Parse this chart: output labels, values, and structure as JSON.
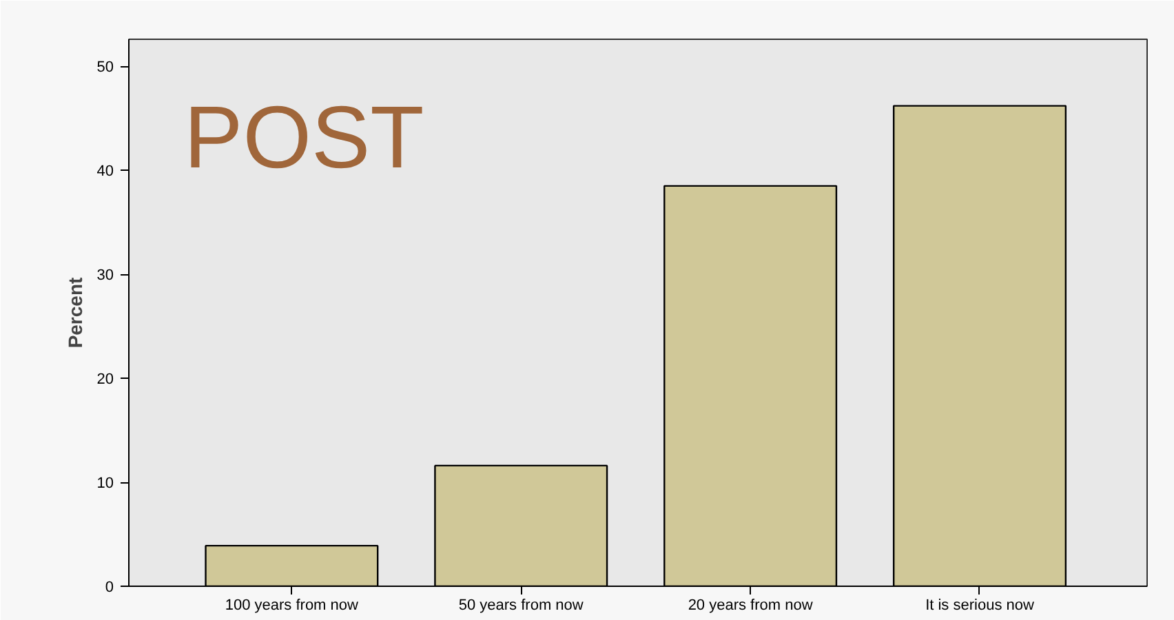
{
  "chart_data": {
    "type": "bar",
    "categories": [
      "100 years from now",
      "50 years from now",
      "20 years from now",
      "It is serious now"
    ],
    "values": [
      3.9,
      11.6,
      38.5,
      46.2
    ],
    "color": "#d0c898",
    "ylabel": "Percent",
    "ylim": [
      0,
      52.6
    ],
    "yticks": [
      0,
      10,
      20,
      30,
      40,
      50
    ],
    "grid": false,
    "annotations": [
      "POST"
    ]
  }
}
